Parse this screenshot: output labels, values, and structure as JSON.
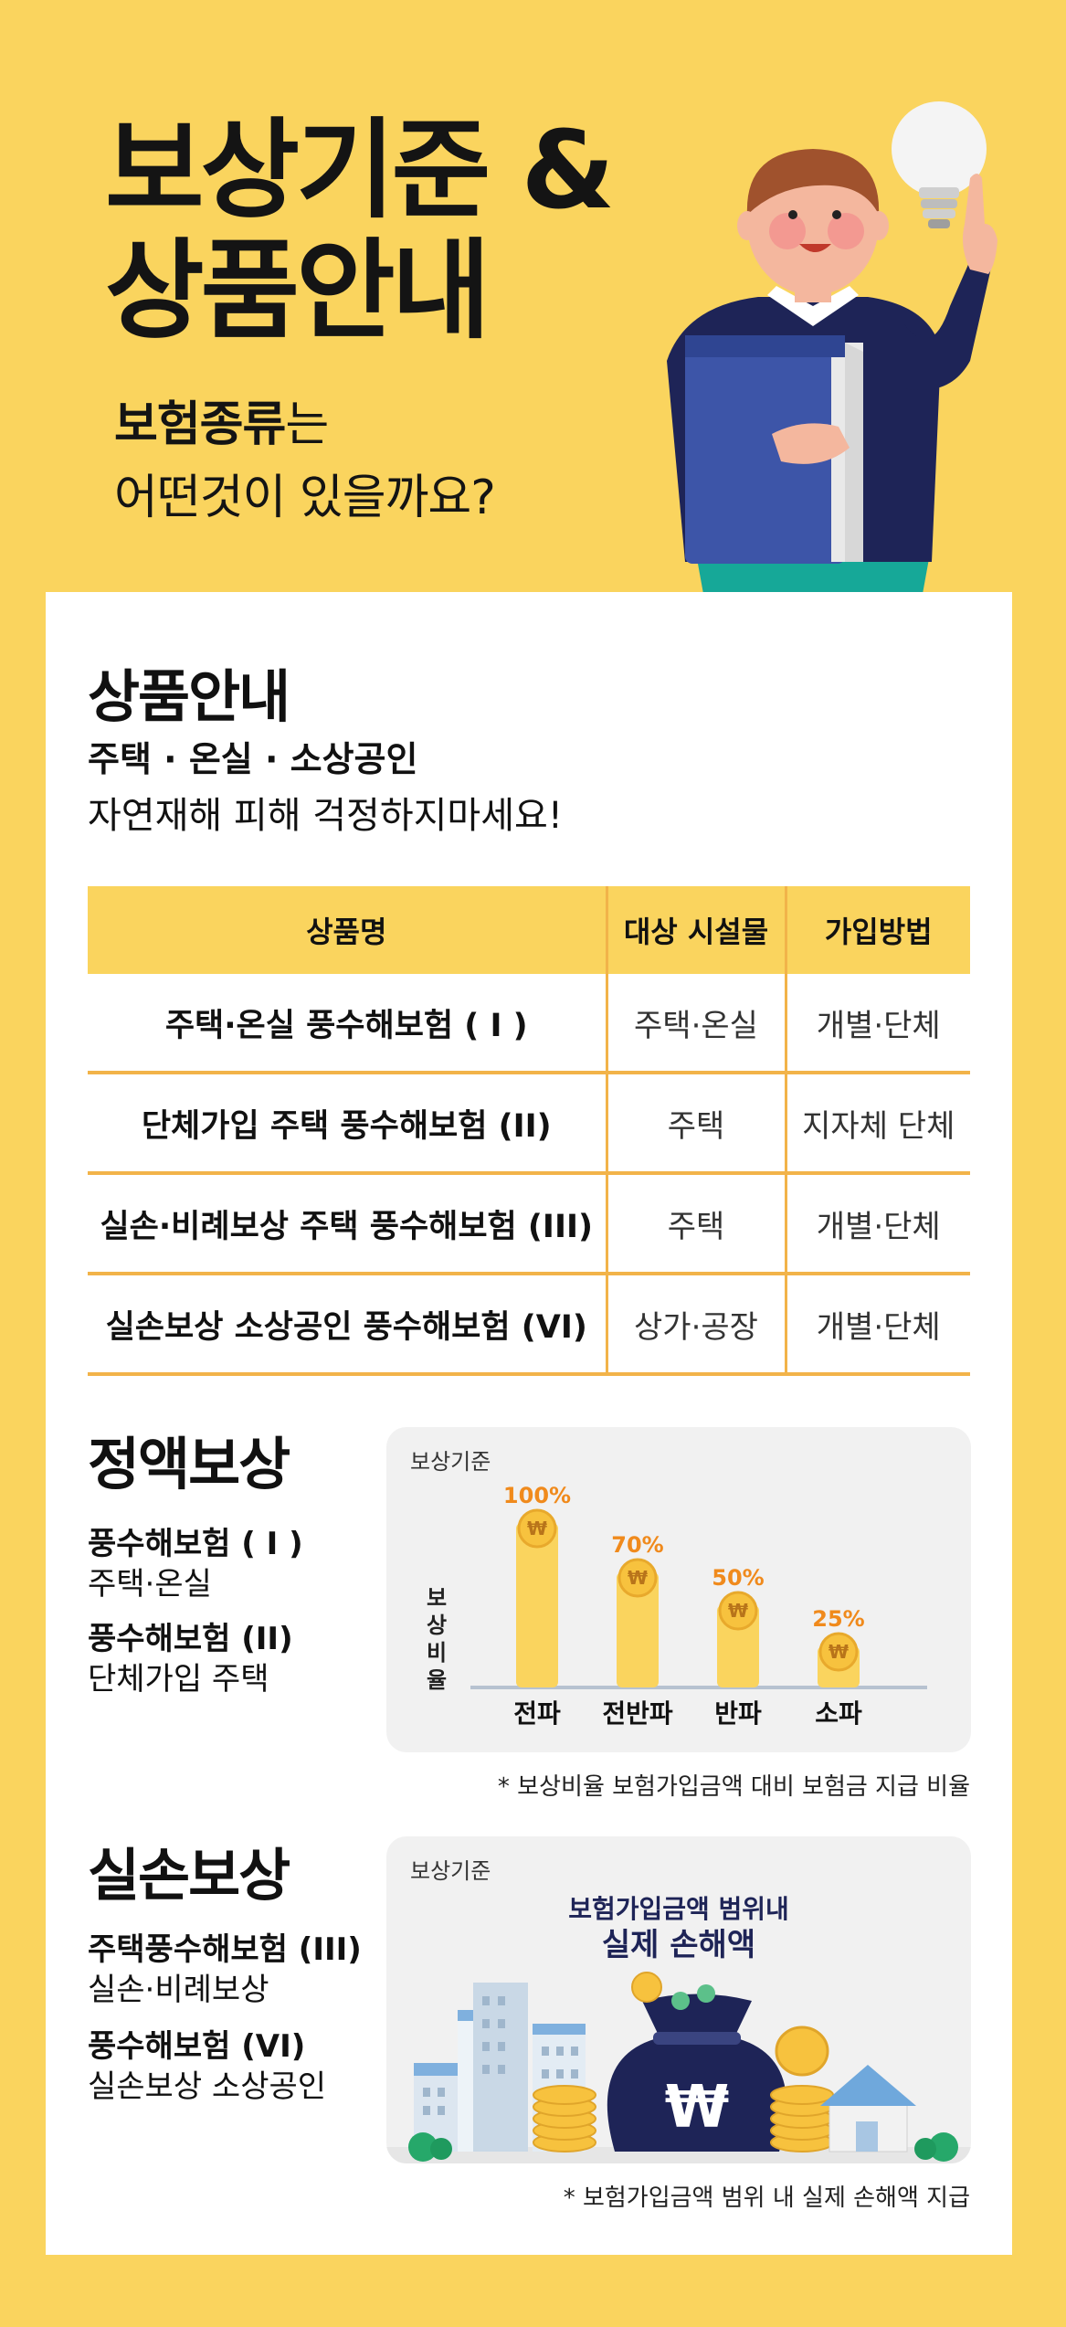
{
  "hero": {
    "title_line1": "보상기준 &",
    "title_line2": "상품안내",
    "question_bold": "보험종류",
    "question_rest": "는",
    "question_line2": "어떤것이 있을까요?"
  },
  "products": {
    "title": "상품안내",
    "subtitle": "주택 · 온실 · 소상공인",
    "tagline": "자연재해 피해 걱정하지마세요!",
    "headers": [
      "상품명",
      "대상 시설물",
      "가입방법"
    ],
    "rows": [
      {
        "name": "주택·온실 풍수해보험 ( I )",
        "target": "주택·온실",
        "method": "개별·단체"
      },
      {
        "name": "단체가입 주택 풍수해보험 (II)",
        "target": "주택",
        "method": "지자체 단체"
      },
      {
        "name": "실손·비례보상 주택 풍수해보험 (III)",
        "target": "주택",
        "method": "개별·단체"
      },
      {
        "name": "실손보상 소상공인 풍수해보험 (VI)",
        "target": "상가·공장",
        "method": "개별·단체"
      }
    ]
  },
  "fixed": {
    "title": "정액보상",
    "items": [
      {
        "name": "풍수해보험 ( I )",
        "desc": "주택·온실"
      },
      {
        "name": "풍수해보험 (II)",
        "desc": "단체가입 주택"
      }
    ],
    "box_caption": "보상기준",
    "note": "* 보상비율 보험가입금액 대비 보험금 지급 비율"
  },
  "chart_data": {
    "type": "bar",
    "ylabel": "보상비율",
    "categories": [
      "전파",
      "전반파",
      "반파",
      "소파"
    ],
    "values": [
      100,
      70,
      50,
      25
    ],
    "value_labels": [
      "100%",
      "70%",
      "50%",
      "25%"
    ],
    "ylim": [
      0,
      100
    ],
    "bar_color": "#FAD45E",
    "label_color": "#F08A1C"
  },
  "actual": {
    "title": "실손보상",
    "items": [
      {
        "name": "주택풍수해보험 (III)",
        "desc": "실손·비례보상"
      },
      {
        "name": "풍수해보험 (VI)",
        "desc": "실손보상 소상공인"
      }
    ],
    "box_caption": "보상기준",
    "headline_line1": "보험가입금액 범위내",
    "headline_line2": "실제 손해액",
    "bag_symbol": "₩",
    "note": "* 보험가입금액 범위 내 실제 손해액 지급"
  },
  "colors": {
    "background": "#FAD45E",
    "accent_line": "#F2B349",
    "navy": "#1E2457",
    "coin": "#F7C23E"
  }
}
